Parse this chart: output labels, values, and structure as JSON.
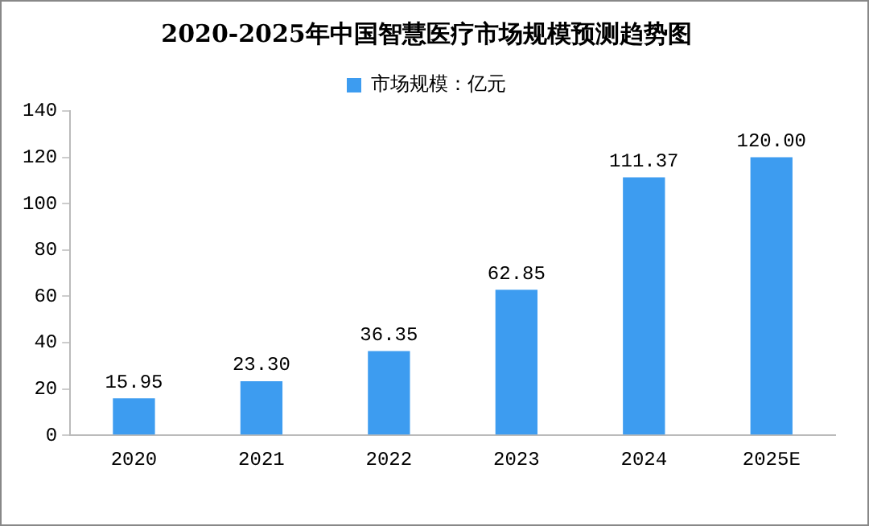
{
  "chart_data": {
    "type": "bar",
    "title": "2020-2025年中国智慧医疗市场规模预测趋势图",
    "categories": [
      "2020",
      "2021",
      "2022",
      "2023",
      "2024",
      "2025E"
    ],
    "series": [
      {
        "name": "市场规模：亿元",
        "color": "#3d9cf0",
        "values": [
          15.95,
          23.3,
          36.35,
          62.85,
          111.37,
          120.0
        ],
        "value_labels": [
          "15.95",
          "23.30",
          "36.35",
          "62.85",
          "111.37",
          "120.00"
        ]
      }
    ],
    "ylim": [
      0,
      140
    ],
    "yticks": [
      0,
      20,
      40,
      60,
      80,
      100,
      120,
      140
    ],
    "grid": false,
    "legend": "top"
  }
}
